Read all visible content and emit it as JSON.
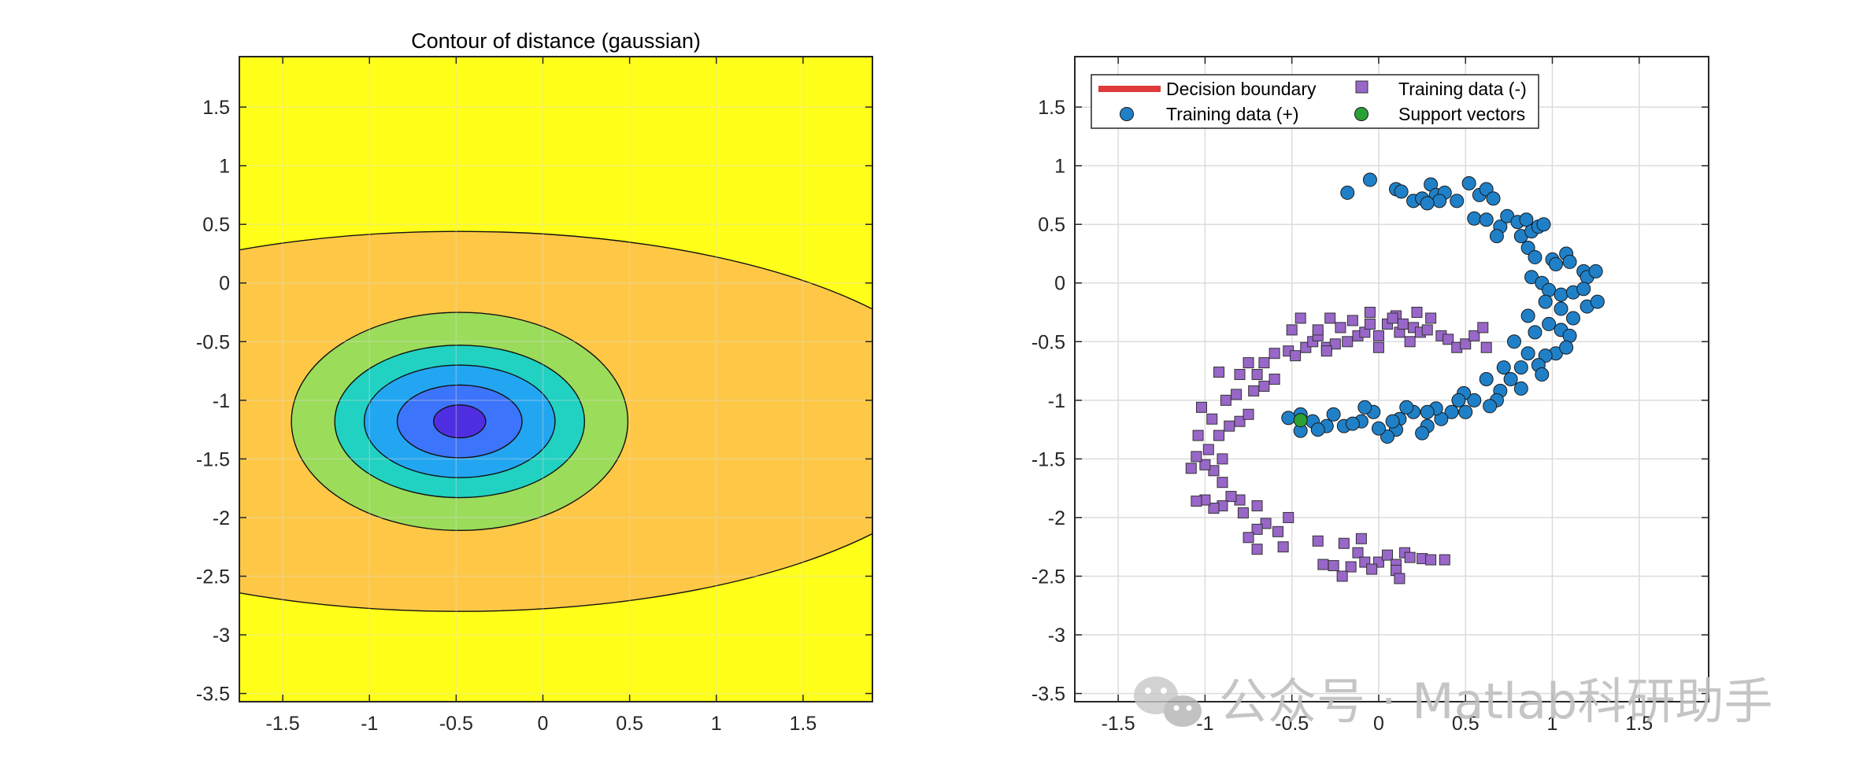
{
  "colors": {
    "level0": "#ffff1a",
    "level1": "#fec846",
    "level2": "#9bdc5a",
    "level3": "#21d2c2",
    "level4": "#23a6f2",
    "level5": "#3d74fc",
    "level6": "#4e2ee0",
    "positive": "#1f80c8",
    "negative": "#9867c8",
    "support": "#2ba135",
    "boundary": "#e03a3a",
    "grid": "#dcdcdc"
  },
  "watermark": {
    "icon": "wechat-icon",
    "text": "公众号 · Matlab科研助手"
  },
  "chart_data": [
    {
      "type": "contour",
      "title": "Contour of distance (gaussian)",
      "xlim": [
        -1.75,
        1.9
      ],
      "ylim": [
        -3.57,
        1.93
      ],
      "xticks": [
        -1.5,
        -1,
        -0.5,
        0,
        0.5,
        1,
        1.5
      ],
      "yticks": [
        -3.5,
        -3,
        -2.5,
        -2,
        -1.5,
        -1,
        -0.5,
        0,
        0.5,
        1,
        1.5
      ],
      "xtick_labels": [
        "-1.5",
        "-1",
        "-0.5",
        "0",
        "0.5",
        "1",
        "1.5"
      ],
      "ytick_labels": [
        "-3.5",
        "-3",
        "-2.5",
        "-2",
        "-1.5",
        "-1",
        "-0.5",
        "0",
        "0.5",
        "1",
        "1.5"
      ],
      "grid": true,
      "center": [
        -0.48,
        -1.18
      ],
      "levels": [
        {
          "rx": 2.95,
          "ry": 1.62,
          "color_key": "level1"
        },
        {
          "rx": 0.97,
          "ry": 0.93,
          "color_key": "level2"
        },
        {
          "rx": 0.72,
          "ry": 0.65,
          "color_key": "level3"
        },
        {
          "rx": 0.55,
          "ry": 0.48,
          "color_key": "level4"
        },
        {
          "rx": 0.36,
          "ry": 0.31,
          "color_key": "level5"
        },
        {
          "rx": 0.15,
          "ry": 0.14,
          "color_key": "level6"
        }
      ]
    },
    {
      "type": "scatter",
      "title": "",
      "xlim": [
        -1.75,
        1.9
      ],
      "ylim": [
        -3.57,
        1.93
      ],
      "xticks": [
        -1.5,
        -1,
        -0.5,
        0,
        0.5,
        1,
        1.5
      ],
      "yticks": [
        -3.5,
        -3,
        -2.5,
        -2,
        -1.5,
        -1,
        -0.5,
        0,
        0.5,
        1,
        1.5
      ],
      "xtick_labels": [
        "-1.5",
        "-1",
        "-0.5",
        "0",
        "0.5",
        "1",
        "1.5"
      ],
      "ytick_labels": [
        "-3.5",
        "-3",
        "-2.5",
        "-2",
        "-1.5",
        "-1",
        "-0.5",
        "0",
        "0.5",
        "1",
        "1.5"
      ],
      "grid": true,
      "legend": {
        "placement": "top-left",
        "entries": [
          {
            "label": "Decision boundary",
            "marker": "line",
            "color_key": "boundary"
          },
          {
            "label": "Training data (-)",
            "marker": "square",
            "color_key": "negative"
          },
          {
            "label": "Training data (+)",
            "marker": "circle",
            "color_key": "positive"
          },
          {
            "label": "Support vectors",
            "marker": "circle",
            "color_key": "support"
          }
        ]
      },
      "series": [
        {
          "name": "Training data (+)",
          "marker": "circle",
          "points": [
            [
              -0.05,
              0.88
            ],
            [
              -0.18,
              0.77
            ],
            [
              0.1,
              0.8
            ],
            [
              0.13,
              0.78
            ],
            [
              0.2,
              0.7
            ],
            [
              0.25,
              0.72
            ],
            [
              0.3,
              0.84
            ],
            [
              0.33,
              0.75
            ],
            [
              0.38,
              0.77
            ],
            [
              0.35,
              0.7
            ],
            [
              0.28,
              0.68
            ],
            [
              0.45,
              0.7
            ],
            [
              0.52,
              0.85
            ],
            [
              0.58,
              0.75
            ],
            [
              0.62,
              0.8
            ],
            [
              0.66,
              0.72
            ],
            [
              0.55,
              0.55
            ],
            [
              0.62,
              0.54
            ],
            [
              0.7,
              0.48
            ],
            [
              0.74,
              0.57
            ],
            [
              0.8,
              0.52
            ],
            [
              0.85,
              0.54
            ],
            [
              0.82,
              0.4
            ],
            [
              0.88,
              0.44
            ],
            [
              0.92,
              0.48
            ],
            [
              0.95,
              0.5
            ],
            [
              0.68,
              0.4
            ],
            [
              0.86,
              0.3
            ],
            [
              0.9,
              0.22
            ],
            [
              1.0,
              0.2
            ],
            [
              1.02,
              0.16
            ],
            [
              1.08,
              0.25
            ],
            [
              1.1,
              0.18
            ],
            [
              1.18,
              0.1
            ],
            [
              1.2,
              0.05
            ],
            [
              1.25,
              0.1
            ],
            [
              0.88,
              0.05
            ],
            [
              0.94,
              0.0
            ],
            [
              0.98,
              -0.06
            ],
            [
              1.05,
              -0.1
            ],
            [
              1.12,
              -0.08
            ],
            [
              1.18,
              -0.05
            ],
            [
              0.96,
              -0.16
            ],
            [
              1.05,
              -0.22
            ],
            [
              1.12,
              -0.3
            ],
            [
              1.2,
              -0.2
            ],
            [
              1.26,
              -0.16
            ],
            [
              0.86,
              -0.28
            ],
            [
              0.98,
              -0.35
            ],
            [
              1.05,
              -0.4
            ],
            [
              1.1,
              -0.45
            ],
            [
              0.9,
              -0.42
            ],
            [
              1.02,
              -0.6
            ],
            [
              1.08,
              -0.55
            ],
            [
              0.96,
              -0.62
            ],
            [
              0.92,
              -0.7
            ],
            [
              0.86,
              -0.6
            ],
            [
              0.78,
              -0.5
            ],
            [
              0.82,
              -0.72
            ],
            [
              0.76,
              -0.82
            ],
            [
              0.7,
              -0.92
            ],
            [
              0.68,
              -1.0
            ],
            [
              0.64,
              -1.05
            ],
            [
              0.55,
              -1.0
            ],
            [
              0.49,
              -0.94
            ],
            [
              0.46,
              -1.0
            ],
            [
              0.5,
              -1.1
            ],
            [
              0.42,
              -1.1
            ],
            [
              0.36,
              -1.16
            ],
            [
              0.33,
              -1.07
            ],
            [
              0.28,
              -1.1
            ],
            [
              0.28,
              -1.22
            ],
            [
              0.25,
              -1.28
            ],
            [
              0.2,
              -1.1
            ],
            [
              0.16,
              -1.06
            ],
            [
              0.12,
              -1.16
            ],
            [
              0.1,
              -1.25
            ],
            [
              0.08,
              -1.18
            ],
            [
              0.05,
              -1.31
            ],
            [
              0.0,
              -1.24
            ],
            [
              -0.03,
              -1.1
            ],
            [
              -0.1,
              -1.18
            ],
            [
              -0.08,
              -1.06
            ],
            [
              -0.2,
              -1.22
            ],
            [
              -0.26,
              -1.12
            ],
            [
              -0.3,
              -1.22
            ],
            [
              -0.38,
              -1.18
            ],
            [
              -0.45,
              -1.12
            ],
            [
              -0.52,
              -1.15
            ],
            [
              -0.45,
              -1.26
            ],
            [
              -0.35,
              -1.25
            ],
            [
              -0.15,
              -1.2
            ],
            [
              0.62,
              -0.82
            ],
            [
              0.82,
              -0.9
            ],
            [
              0.72,
              -0.72
            ],
            [
              0.94,
              -0.78
            ]
          ]
        },
        {
          "name": "Training data (-)",
          "marker": "square",
          "points": [
            [
              0.0,
              -2.38
            ],
            [
              0.05,
              -2.32
            ],
            [
              0.1,
              -2.4
            ],
            [
              0.15,
              -2.3
            ],
            [
              0.18,
              -2.34
            ],
            [
              0.25,
              -2.35
            ],
            [
              0.3,
              -2.36
            ],
            [
              0.38,
              -2.36
            ],
            [
              0.1,
              -2.45
            ],
            [
              0.12,
              -2.52
            ],
            [
              -0.12,
              -2.3
            ],
            [
              -0.08,
              -2.38
            ],
            [
              -0.16,
              -2.42
            ],
            [
              -0.26,
              -2.41
            ],
            [
              -0.32,
              -2.4
            ],
            [
              -0.21,
              -2.5
            ],
            [
              -0.04,
              -2.44
            ],
            [
              -0.1,
              -2.18
            ],
            [
              -0.2,
              -2.22
            ],
            [
              -0.35,
              -2.2
            ],
            [
              -0.52,
              -2.0
            ],
            [
              -0.58,
              -2.12
            ],
            [
              -0.65,
              -2.05
            ],
            [
              -0.7,
              -2.1
            ],
            [
              -0.55,
              -2.25
            ],
            [
              -0.7,
              -2.27
            ],
            [
              -0.75,
              -2.17
            ],
            [
              -0.78,
              -1.96
            ],
            [
              -0.7,
              -1.9
            ],
            [
              -0.8,
              -1.85
            ],
            [
              -0.85,
              -1.82
            ],
            [
              -0.9,
              -1.9
            ],
            [
              -0.95,
              -1.92
            ],
            [
              -1.0,
              -1.85
            ],
            [
              -1.05,
              -1.86
            ],
            [
              -0.9,
              -1.7
            ],
            [
              -0.95,
              -1.6
            ],
            [
              -1.0,
              -1.55
            ],
            [
              -1.05,
              -1.48
            ],
            [
              -1.08,
              -1.58
            ],
            [
              -0.98,
              -1.42
            ],
            [
              -1.04,
              -1.3
            ],
            [
              -0.92,
              -1.3
            ],
            [
              -0.9,
              -1.5
            ],
            [
              -0.86,
              -1.22
            ],
            [
              -0.8,
              -1.18
            ],
            [
              -0.75,
              -1.12
            ],
            [
              -0.96,
              -1.16
            ],
            [
              -1.02,
              -1.06
            ],
            [
              -0.88,
              -1.0
            ],
            [
              -0.82,
              -0.95
            ],
            [
              -0.72,
              -0.92
            ],
            [
              -0.66,
              -0.88
            ],
            [
              -0.7,
              -0.78
            ],
            [
              -0.6,
              -0.82
            ],
            [
              -0.66,
              -0.68
            ],
            [
              -0.6,
              -0.6
            ],
            [
              -0.52,
              -0.58
            ],
            [
              -0.48,
              -0.62
            ],
            [
              -0.42,
              -0.55
            ],
            [
              -0.38,
              -0.5
            ],
            [
              -0.35,
              -0.45
            ],
            [
              -0.3,
              -0.55
            ],
            [
              -0.25,
              -0.52
            ],
            [
              -0.22,
              -0.38
            ],
            [
              -0.18,
              -0.5
            ],
            [
              -0.12,
              -0.45
            ],
            [
              -0.08,
              -0.42
            ],
            [
              -0.05,
              -0.35
            ],
            [
              0.0,
              -0.45
            ],
            [
              0.05,
              -0.35
            ],
            [
              0.1,
              -0.28
            ],
            [
              0.12,
              -0.42
            ],
            [
              0.18,
              -0.5
            ],
            [
              0.2,
              -0.38
            ],
            [
              0.24,
              -0.42
            ],
            [
              0.3,
              -0.3
            ],
            [
              0.36,
              -0.45
            ],
            [
              0.4,
              -0.48
            ],
            [
              0.45,
              -0.55
            ],
            [
              0.5,
              -0.52
            ],
            [
              0.55,
              -0.45
            ],
            [
              0.6,
              -0.38
            ],
            [
              0.62,
              -0.55
            ],
            [
              -0.5,
              -0.4
            ],
            [
              -0.45,
              -0.3
            ],
            [
              -0.35,
              -0.4
            ],
            [
              -0.28,
              -0.3
            ],
            [
              -0.15,
              -0.32
            ],
            [
              -0.05,
              -0.25
            ],
            [
              0.08,
              -0.3
            ],
            [
              0.22,
              -0.25
            ],
            [
              0.28,
              -0.4
            ],
            [
              -0.8,
              -0.78
            ],
            [
              -0.75,
              -0.68
            ],
            [
              -0.92,
              -0.76
            ],
            [
              0.0,
              -0.55
            ],
            [
              0.14,
              -0.35
            ],
            [
              -0.3,
              -0.58
            ]
          ]
        },
        {
          "name": "Support vectors",
          "marker": "circle",
          "points": [
            [
              -0.45,
              -1.17
            ]
          ]
        }
      ]
    }
  ]
}
